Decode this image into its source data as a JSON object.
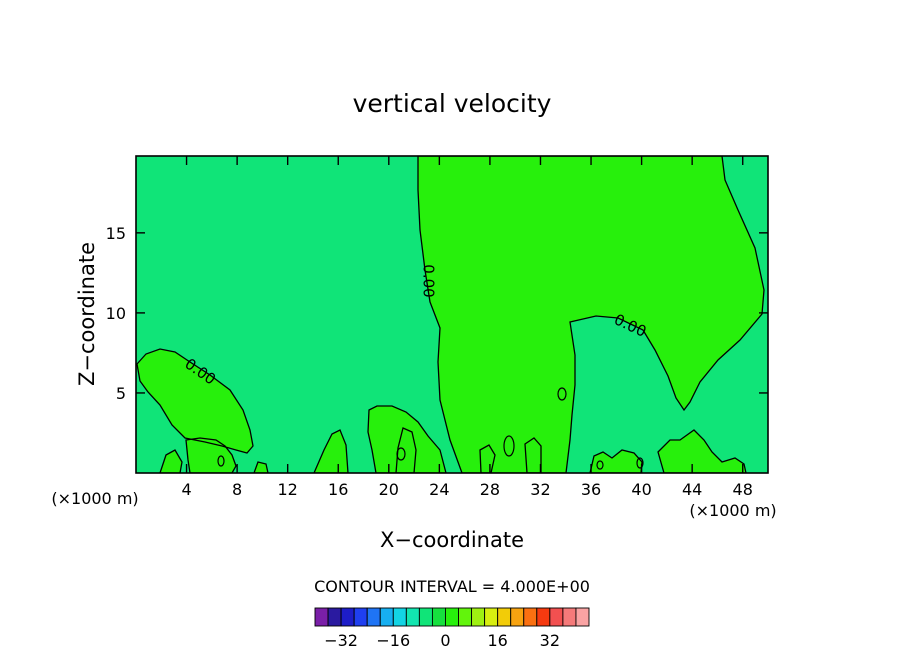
{
  "chart_data": {
    "type": "heatmap",
    "title": "vertical velocity",
    "xlabel": "X−coordinate",
    "ylabel": "Z−coordinate",
    "x_unit": "(×1000 m)",
    "y_unit": "(×1000 m)",
    "x_ticks": [
      4,
      8,
      12,
      16,
      20,
      24,
      28,
      32,
      36,
      40,
      44,
      48
    ],
    "y_ticks": [
      5,
      10,
      15
    ],
    "xlim": [
      0,
      50
    ],
    "ylim": [
      0,
      19.8
    ],
    "contour_interval_text": "CONTOUR INTERVAL = 4.000E+00",
    "contour_labels": [
      "0.00",
      "0.00",
      "0.00"
    ],
    "field_levels": {
      "background": "0 to 4",
      "upward_regions": "4 to 8"
    },
    "colorbar": {
      "colors": [
        "#7a1fa8",
        "#2a1aa0",
        "#1d1dc8",
        "#1f3ff0",
        "#1f74f5",
        "#17aff0",
        "#13d4e4",
        "#12e6b0",
        "#10e478",
        "#16e03e",
        "#27f00c",
        "#62f40c",
        "#9ff012",
        "#d8ee10",
        "#f2cc08",
        "#f7a310",
        "#fa7011",
        "#f63a10",
        "#f25050",
        "#f57a7a",
        "#f9a3a3"
      ],
      "tick_labels": [
        "−32",
        "−16",
        "0",
        "16",
        "32"
      ],
      "tick_values": [
        -32,
        -16,
        0,
        16,
        32
      ],
      "min": -40,
      "max": 44
    },
    "colors": {
      "background_fill": "#10e478",
      "updraft_fill": "#27f00c",
      "contour_line": "#000000"
    }
  }
}
